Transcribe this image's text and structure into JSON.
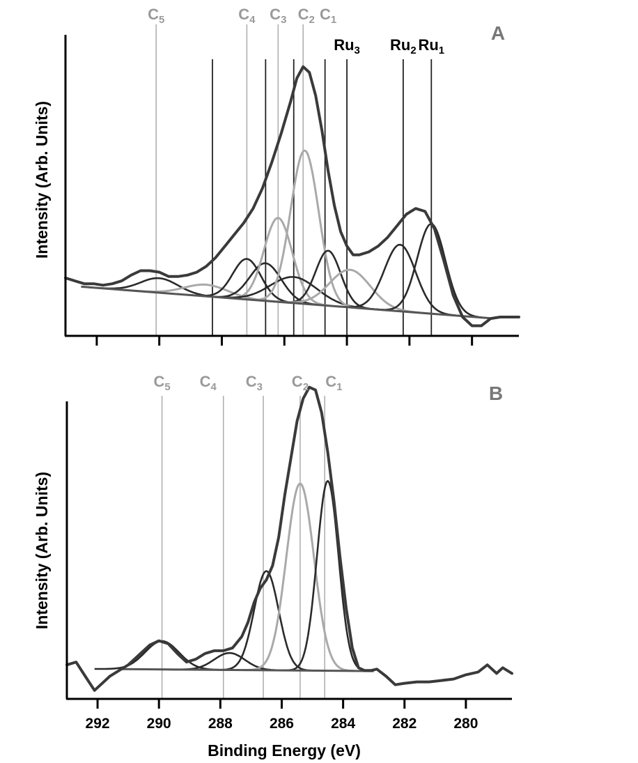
{
  "colors": {
    "envelope": "#3a3a3a",
    "component_dark": "#2a2a2a",
    "component_light": "#a9a9a9",
    "marker_dark": "#222222",
    "marker_light": "#b0b0b0",
    "background_line": "#555555",
    "axis": "#000000",
    "carbon_label": "#9a9a9a",
    "ru_label": "#000000"
  },
  "chart_data": [
    {
      "panel": "A",
      "type": "line",
      "xlabel": "",
      "ylabel": "Intensity (Arb. Units)",
      "xlim": [
        293,
        278.5
      ],
      "ylim": [
        -0.04,
        1.0
      ],
      "x_reversed": true,
      "grid": false,
      "peak_labels": [
        {
          "label": "C",
          "sub": "5",
          "x": 290.1,
          "tone": "light"
        },
        {
          "label": "C",
          "sub": "4",
          "x": 287.2,
          "tone": "light"
        },
        {
          "label": "C",
          "sub": "3",
          "x": 286.2,
          "tone": "light"
        },
        {
          "label": "C",
          "sub": "2",
          "x": 285.3,
          "tone": "light"
        },
        {
          "label": "C",
          "sub": "1",
          "x": 284.6,
          "tone": "light"
        },
        {
          "label": "Ru",
          "sub": "3",
          "x": 284.0,
          "tone": "dark"
        },
        {
          "label": "Ru",
          "sub": "2",
          "x": 282.2,
          "tone": "dark"
        },
        {
          "label": "Ru",
          "sub": "1",
          "x": 281.3,
          "tone": "dark"
        }
      ],
      "marker_lines": [
        {
          "x": 290.1,
          "tone": "light"
        },
        {
          "x": 288.3,
          "tone": "dark"
        },
        {
          "x": 287.2,
          "tone": "light"
        },
        {
          "x": 286.6,
          "tone": "dark"
        },
        {
          "x": 286.2,
          "tone": "light"
        },
        {
          "x": 285.7,
          "tone": "dark"
        },
        {
          "x": 285.4,
          "tone": "light"
        },
        {
          "x": 284.7,
          "tone": "dark"
        },
        {
          "x": 284.0,
          "tone": "dark"
        },
        {
          "x": 282.2,
          "tone": "dark"
        },
        {
          "x": 281.3,
          "tone": "dark"
        }
      ],
      "background": {
        "x": [
          292.5,
          279.3
        ],
        "y": [
          0.13,
          0.02
        ]
      },
      "components": [
        {
          "center": 290.0,
          "amp": 0.05,
          "sigma": 0.6,
          "tone": "dark"
        },
        {
          "center": 288.5,
          "amp": 0.04,
          "sigma": 0.7,
          "tone": "light"
        },
        {
          "center": 287.2,
          "amp": 0.14,
          "sigma": 0.45,
          "tone": "dark"
        },
        {
          "center": 286.6,
          "amp": 0.13,
          "sigma": 0.5,
          "tone": "dark"
        },
        {
          "center": 286.2,
          "amp": 0.29,
          "sigma": 0.45,
          "tone": "light"
        },
        {
          "center": 285.7,
          "amp": 0.09,
          "sigma": 0.75,
          "tone": "dark"
        },
        {
          "center": 285.35,
          "amp": 0.53,
          "sigma": 0.45,
          "tone": "light"
        },
        {
          "center": 284.6,
          "amp": 0.19,
          "sigma": 0.4,
          "tone": "dark"
        },
        {
          "center": 283.9,
          "amp": 0.13,
          "sigma": 0.65,
          "tone": "light"
        },
        {
          "center": 282.3,
          "amp": 0.23,
          "sigma": 0.5,
          "tone": "dark"
        },
        {
          "center": 281.3,
          "amp": 0.31,
          "sigma": 0.45,
          "tone": "dark"
        }
      ],
      "envelope": {
        "x": [
          293,
          292.7,
          292.4,
          292.1,
          291.8,
          291.5,
          291.2,
          290.9,
          290.6,
          290.3,
          290.0,
          289.7,
          289.4,
          289.1,
          288.8,
          288.5,
          288.2,
          287.9,
          287.6,
          287.3,
          287.0,
          286.7,
          286.4,
          286.1,
          285.8,
          285.6,
          285.4,
          285.2,
          285.0,
          284.8,
          284.6,
          284.4,
          284.2,
          284.0,
          283.8,
          283.6,
          283.3,
          283.0,
          282.7,
          282.4,
          282.1,
          281.8,
          281.5,
          281.2,
          280.9,
          280.6,
          280.3,
          280.0,
          279.7,
          279.4,
          279.1,
          278.8,
          278.5
        ],
        "y": [
          0.16,
          0.15,
          0.14,
          0.14,
          0.135,
          0.14,
          0.15,
          0.17,
          0.185,
          0.185,
          0.18,
          0.165,
          0.165,
          0.17,
          0.18,
          0.2,
          0.23,
          0.27,
          0.31,
          0.35,
          0.4,
          0.47,
          0.56,
          0.66,
          0.77,
          0.85,
          0.89,
          0.87,
          0.79,
          0.67,
          0.53,
          0.41,
          0.32,
          0.27,
          0.24,
          0.24,
          0.25,
          0.27,
          0.3,
          0.34,
          0.38,
          0.4,
          0.39,
          0.33,
          0.22,
          0.1,
          0.025,
          -0.005,
          -0.005,
          0.02,
          0.025,
          0.025,
          0.025
        ]
      }
    },
    {
      "panel": "B",
      "type": "line",
      "xlabel": "Binding Energy (eV)",
      "ylabel": "Intensity (Arb. Units)",
      "xlim": [
        293,
        278.5
      ],
      "ylim": [
        -0.05,
        1.0
      ],
      "x_reversed": true,
      "grid": false,
      "xticks": [
        292,
        290,
        288,
        286,
        284,
        282,
        280
      ],
      "peak_labels": [
        {
          "label": "C",
          "sub": "5",
          "x": 289.9,
          "tone": "light"
        },
        {
          "label": "C",
          "sub": "4",
          "x": 288.4,
          "tone": "light"
        },
        {
          "label": "C",
          "sub": "3",
          "x": 286.9,
          "tone": "light"
        },
        {
          "label": "C",
          "sub": "2",
          "x": 285.4,
          "tone": "light"
        },
        {
          "label": "C",
          "sub": "1",
          "x": 284.3,
          "tone": "light"
        }
      ],
      "marker_lines": [
        {
          "x": 289.9,
          "tone": "light"
        },
        {
          "x": 287.9,
          "tone": "light"
        },
        {
          "x": 286.6,
          "tone": "light"
        },
        {
          "x": 285.4,
          "tone": "light"
        },
        {
          "x": 284.6,
          "tone": "light"
        }
      ],
      "background": {
        "x": [
          291.2,
          283.0
        ],
        "y": [
          0.055,
          0.048
        ]
      },
      "components": [
        {
          "center": 289.9,
          "amp": 0.1,
          "sigma": 0.55,
          "tone": "dark"
        },
        {
          "center": 287.7,
          "amp": 0.06,
          "sigma": 0.5,
          "tone": "dark"
        },
        {
          "center": 286.5,
          "amp": 0.35,
          "sigma": 0.4,
          "tone": "dark"
        },
        {
          "center": 285.4,
          "amp": 0.66,
          "sigma": 0.45,
          "tone": "light"
        },
        {
          "center": 284.5,
          "amp": 0.67,
          "sigma": 0.35,
          "tone": "dark"
        }
      ],
      "envelope": {
        "x": [
          293,
          292.7,
          292.4,
          292.1,
          291.9,
          291.6,
          291.3,
          291.0,
          290.6,
          290.3,
          290.0,
          289.7,
          289.4,
          289.1,
          288.8,
          288.5,
          288.2,
          287.9,
          287.6,
          287.3,
          287.1,
          286.9,
          286.7,
          286.5,
          286.3,
          286.1,
          285.9,
          285.7,
          285.5,
          285.3,
          285.1,
          284.9,
          284.7,
          284.5,
          284.3,
          284.1,
          283.9,
          283.7,
          283.5,
          283.3,
          283.1,
          282.9,
          282.6,
          282.3,
          282.0,
          281.6,
          281.2,
          280.8,
          280.4,
          280.0,
          279.6,
          279.3,
          279.0,
          278.8,
          278.5
        ],
        "y": [
          0.07,
          0.08,
          0.03,
          -0.02,
          0.0,
          0.03,
          0.05,
          0.07,
          0.11,
          0.14,
          0.155,
          0.145,
          0.11,
          0.08,
          0.09,
          0.11,
          0.12,
          0.12,
          0.13,
          0.17,
          0.22,
          0.29,
          0.34,
          0.37,
          0.42,
          0.52,
          0.67,
          0.8,
          0.93,
          1.01,
          1.05,
          1.04,
          0.96,
          0.82,
          0.65,
          0.45,
          0.27,
          0.13,
          0.06,
          0.05,
          0.05,
          0.055,
          0.03,
          0.0,
          0.005,
          0.01,
          0.01,
          0.015,
          0.02,
          0.035,
          0.045,
          0.07,
          0.04,
          0.06,
          0.04
        ]
      }
    }
  ],
  "panel_labels": [
    "A",
    "B"
  ],
  "xaxis_title": "Binding Energy (eV)",
  "yaxis_title": "Intensity (Arb. Units)",
  "xtick_labels": [
    "292",
    "290",
    "288",
    "286",
    "284",
    "282",
    "280"
  ]
}
